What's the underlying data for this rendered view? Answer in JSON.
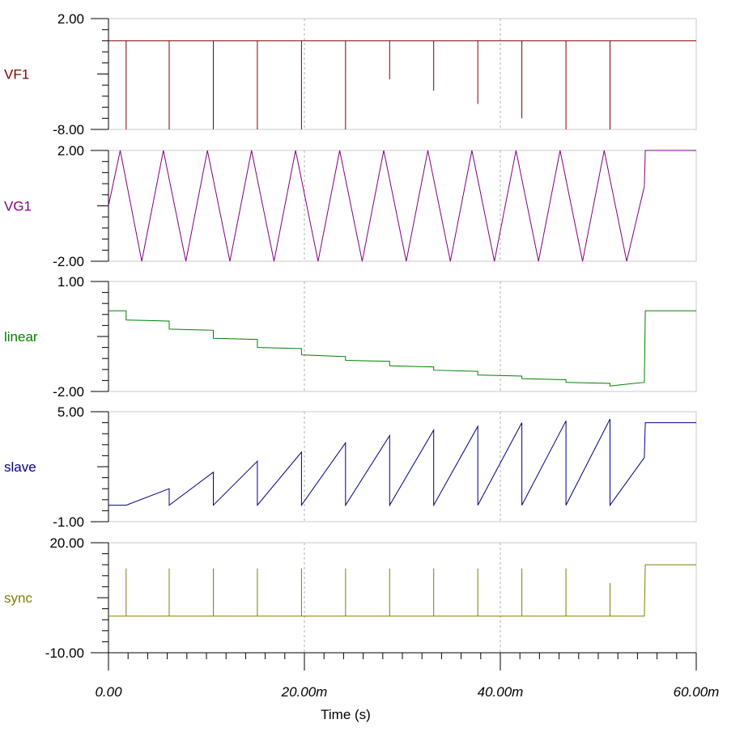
{
  "chart_data": {
    "type": "line",
    "x_unit": "s",
    "xlabel": "Time (s)",
    "xlim": [
      0,
      0.06
    ],
    "x_ticks": [
      "0.00",
      "20.00m",
      "40.00m",
      "60.00m"
    ],
    "vertical_gridlines": [
      "20.00m",
      "40.00m"
    ],
    "panels": [
      {
        "name": "VF1",
        "color": "#800000",
        "ylim": [
          -8,
          2
        ],
        "y_ticks": [
          "2.00",
          "-8.00"
        ],
        "x": [
          0,
          0.0018,
          0.0018,
          0.0018,
          0.0018,
          0.0062,
          0.0062,
          0.0062,
          0.0062,
          0.0107,
          0.0107,
          0.0107,
          0.0107,
          0.0152,
          0.0152,
          0.0152,
          0.0152,
          0.0197,
          0.0197,
          0.0197,
          0.0197,
          0.0242,
          0.0242,
          0.0242,
          0.0242,
          0.0287,
          0.0287,
          0.0287,
          0.0287,
          0.0332,
          0.0332,
          0.0332,
          0.0332,
          0.0377,
          0.0377,
          0.0377,
          0.0377,
          0.0422,
          0.0422,
          0.0422,
          0.0422,
          0.0467,
          0.0467,
          0.0467,
          0.0467,
          0.0512,
          0.0512,
          0.0512,
          0.0512,
          0.06
        ],
        "y": [
          0.0,
          0.0,
          -8.0,
          -8.0,
          0.0,
          0.0,
          -8.0,
          -8.0,
          0.0,
          0.0,
          -8.0,
          -8.0,
          0.0,
          0.0,
          -8.0,
          -8.0,
          0.0,
          0.0,
          -8.0,
          -8.0,
          0.0,
          0.0,
          -8.0,
          -8.0,
          0.0,
          0.0,
          -3.5,
          -3.5,
          0.0,
          0.0,
          -4.5,
          -4.5,
          0.0,
          0.0,
          -5.7,
          -5.7,
          0.0,
          0.0,
          -7.0,
          -7.0,
          0.0,
          0.0,
          -8.0,
          -8.0,
          0.0,
          0.0,
          -8.0,
          -8.0,
          0.0,
          0.0
        ]
      },
      {
        "name": "VG1",
        "color": "#800080",
        "ylim": [
          -2,
          2
        ],
        "y_ticks": [
          "2.00",
          "-2.00"
        ],
        "x": [
          0,
          0.0012,
          0.0034,
          0.0056,
          0.0079,
          0.0101,
          0.0124,
          0.0146,
          0.0169,
          0.0191,
          0.0214,
          0.0236,
          0.0259,
          0.0281,
          0.0304,
          0.0326,
          0.0349,
          0.0371,
          0.0394,
          0.0416,
          0.0439,
          0.0461,
          0.0484,
          0.0506,
          0.0529,
          0.0547,
          0.0548,
          0.0555,
          0.06
        ],
        "y": [
          0.0,
          2.0,
          -2.0,
          2.0,
          -2.0,
          2.0,
          -2.0,
          2.0,
          -2.0,
          2.0,
          -2.0,
          2.0,
          -2.0,
          2.0,
          -2.0,
          2.0,
          -2.0,
          2.0,
          -2.0,
          2.0,
          -2.0,
          2.0,
          -2.0,
          2.0,
          -2.0,
          0.7,
          2.0,
          2.0,
          2.0
        ]
      },
      {
        "name": "linear",
        "color": "#008000",
        "ylim": [
          -2,
          1
        ],
        "y_ticks": [
          "1.00",
          "-2.00"
        ],
        "x": [
          0,
          0.0018,
          0.0018,
          0.0062,
          0.0062,
          0.0107,
          0.0107,
          0.0152,
          0.0152,
          0.0197,
          0.0197,
          0.0242,
          0.0242,
          0.0287,
          0.0287,
          0.0332,
          0.0332,
          0.0377,
          0.0377,
          0.0422,
          0.0422,
          0.0467,
          0.0467,
          0.0512,
          0.0512,
          0.0547,
          0.0548,
          0.06
        ],
        "y": [
          0.2,
          0.2,
          -0.05,
          -0.08,
          -0.3,
          -0.33,
          -0.55,
          -0.58,
          -0.8,
          -0.83,
          -1.0,
          -1.05,
          -1.15,
          -1.18,
          -1.3,
          -1.33,
          -1.42,
          -1.45,
          -1.55,
          -1.58,
          -1.65,
          -1.68,
          -1.75,
          -1.78,
          -1.85,
          -1.75,
          0.2,
          0.2
        ]
      },
      {
        "name": "slave",
        "color": "#000080",
        "ylim": [
          -1,
          5
        ],
        "y_ticks": [
          "5.00",
          "-1.00"
        ],
        "x": [
          0,
          0.0018,
          0.0062,
          0.0062,
          0.0107,
          0.0107,
          0.0152,
          0.0152,
          0.0197,
          0.0197,
          0.0242,
          0.0242,
          0.0287,
          0.0287,
          0.0332,
          0.0332,
          0.0377,
          0.0377,
          0.0422,
          0.0422,
          0.0467,
          0.0467,
          0.0512,
          0.0512,
          0.0547,
          0.0548,
          0.06
        ],
        "y": [
          -0.1,
          -0.1,
          0.8,
          -0.1,
          1.7,
          -0.1,
          2.3,
          -0.1,
          2.8,
          -0.1,
          3.3,
          -0.1,
          3.7,
          -0.1,
          4.0,
          -0.1,
          4.2,
          -0.1,
          4.4,
          -0.1,
          4.5,
          -0.1,
          4.6,
          -0.1,
          2.5,
          4.4,
          4.4
        ]
      },
      {
        "name": "sync",
        "color": "#808000",
        "ylim": [
          -10,
          20
        ],
        "y_ticks": [
          "20.00",
          "-10.00"
        ],
        "x": [
          0,
          0.0018,
          0.0018,
          0.0018,
          0.0062,
          0.0062,
          0.0062,
          0.0107,
          0.0107,
          0.0107,
          0.0152,
          0.0152,
          0.0152,
          0.0197,
          0.0197,
          0.0197,
          0.0242,
          0.0242,
          0.0242,
          0.0287,
          0.0287,
          0.0287,
          0.0332,
          0.0332,
          0.0332,
          0.0377,
          0.0377,
          0.0377,
          0.0422,
          0.0422,
          0.0422,
          0.0467,
          0.0467,
          0.0467,
          0.0512,
          0.0512,
          0.0512,
          0.0547,
          0.0548,
          0.06
        ],
        "y": [
          0,
          0,
          13,
          0,
          0,
          13,
          0,
          0,
          13,
          0,
          0,
          13,
          0,
          0,
          13,
          0,
          0,
          13,
          0,
          0,
          13,
          0,
          0,
          13,
          0,
          0,
          13,
          0,
          0,
          13,
          0,
          0,
          13,
          0,
          0,
          9,
          0,
          0,
          14,
          14
        ]
      }
    ]
  }
}
